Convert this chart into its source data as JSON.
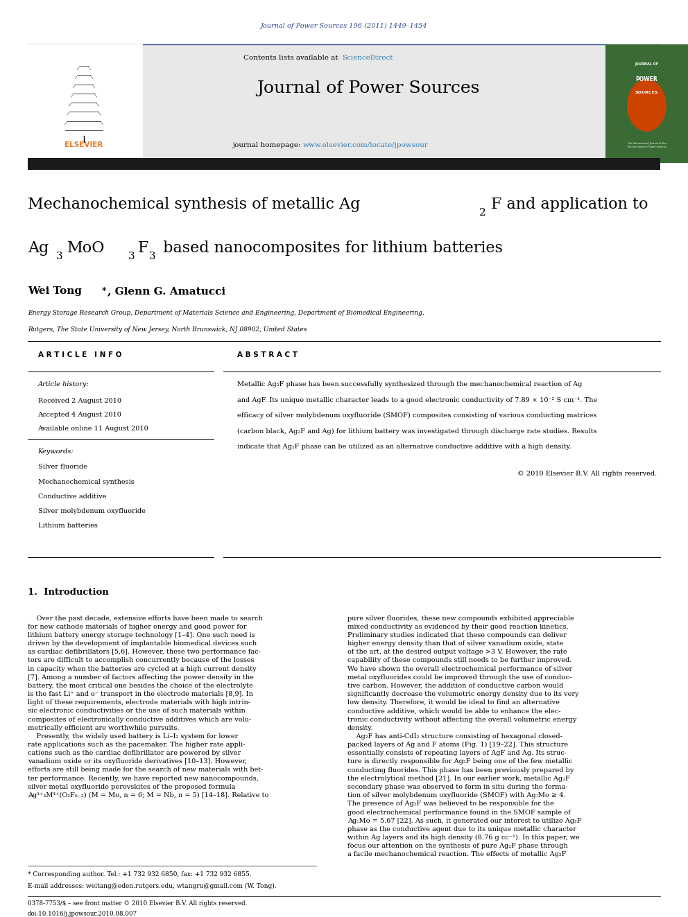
{
  "page_width": 9.92,
  "page_height": 13.23,
  "bg_color": "#ffffff",
  "header_citation": "Journal of Power Sources 196 (2011) 1449–1454",
  "header_citation_color": "#2e4a8c",
  "journal_name": "Journal of Power Sources",
  "contents_text": "Contents lists available at ",
  "sciencedirect_text": "ScienceDirect",
  "sciencedirect_color": "#2e7db5",
  "homepage_text": "journal homepage: ",
  "homepage_url": "www.elsevier.com/locate/jpowsour",
  "homepage_url_color": "#2e7db5",
  "header_bg": "#e8e8e8",
  "thick_bar_color": "#1a1a1a",
  "authors": "Wei Tong*, Glenn G. Amatucci",
  "section_article_info": "ARTICLE INFO",
  "section_abstract": "ABSTRACT",
  "article_history_label": "Article history:",
  "received": "Received 2 August 2010",
  "accepted": "Accepted 4 August 2010",
  "available": "Available online 11 August 2010",
  "keywords_label": "Keywords:",
  "keywords": [
    "Silver fluoride",
    "Mechanochemical synthesis",
    "Conductive additive",
    "Silver molybdenum oxyfluoride",
    "Lithium batteries"
  ],
  "copyright": "© 2010 Elsevier B.V. All rights reserved.",
  "intro_heading": "1.  Introduction",
  "footnote_star": "* Corresponding author. Tel.: +1 732 932 6850, fax: +1 732 932 6855.",
  "footnote_email": "E-mail addresses: weitang@eden.rutgers.edu, wtangru@gmail.com (W. Tong).",
  "footer_left": "0378-7753/$ – see front matter © 2010 Elsevier B.V. All rights reserved.",
  "footer_doi": "doi:10.1016/j.jpowsour.2010.08.007",
  "elsevier_color": "#e87722"
}
